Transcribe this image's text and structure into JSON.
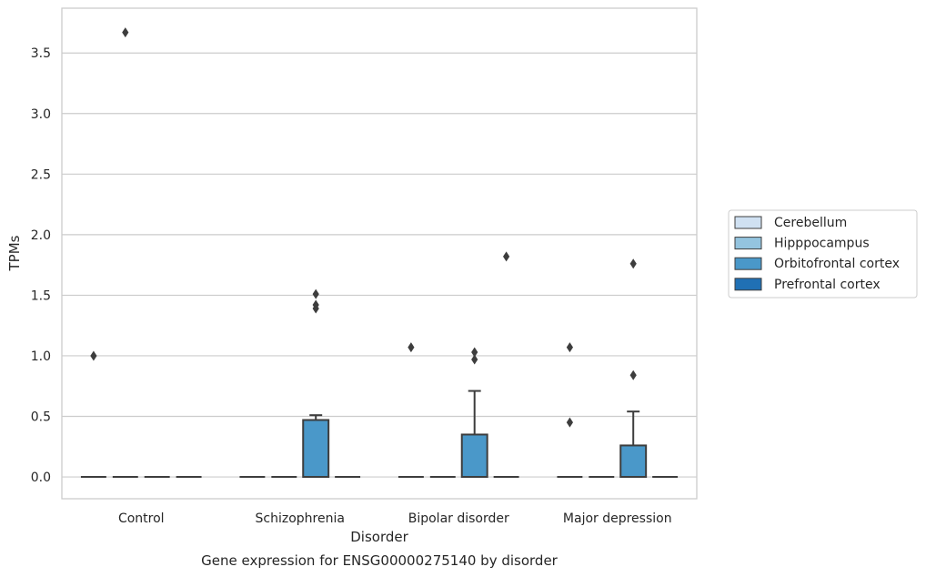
{
  "chart_data": {
    "type": "box",
    "caption": "Gene expression for ENSG00000275140 by disorder",
    "xlabel": "Disorder",
    "ylabel": "TPMs",
    "ylim": [
      -0.18,
      3.87
    ],
    "y_ticks": [
      "0.0",
      "0.5",
      "1.0",
      "1.5",
      "2.0",
      "2.5",
      "3.0",
      "3.5"
    ],
    "y_tick_values": [
      0,
      0.5,
      1.0,
      1.5,
      2.0,
      2.5,
      3.0,
      3.5
    ],
    "categories": [
      "Control",
      "Schizophrenia",
      "Bipolar disorder",
      "Major depression"
    ],
    "grid": "horizontal",
    "legend_position": "right",
    "series": [
      {
        "name": "Cerebellum",
        "color": "#d0e1f2",
        "boxes": [
          {
            "q1": 0,
            "median": 0,
            "q3": 0,
            "whisker_low": 0,
            "whisker_high": 0,
            "outliers": [
              1.0
            ]
          },
          {
            "q1": 0,
            "median": 0,
            "q3": 0,
            "whisker_low": 0,
            "whisker_high": 0,
            "outliers": []
          },
          {
            "q1": 0,
            "median": 0,
            "q3": 0,
            "whisker_low": 0,
            "whisker_high": 0,
            "outliers": [
              1.07
            ]
          },
          {
            "q1": 0,
            "median": 0,
            "q3": 0,
            "whisker_low": 0,
            "whisker_high": 0,
            "outliers": [
              1.07,
              0.45
            ]
          }
        ]
      },
      {
        "name": "Hipppocampus",
        "color": "#94c4df",
        "boxes": [
          {
            "q1": 0,
            "median": 0,
            "q3": 0,
            "whisker_low": 0,
            "whisker_high": 0,
            "outliers": [
              3.67
            ]
          },
          {
            "q1": 0,
            "median": 0,
            "q3": 0,
            "whisker_low": 0,
            "whisker_high": 0,
            "outliers": []
          },
          {
            "q1": 0,
            "median": 0,
            "q3": 0,
            "whisker_low": 0,
            "whisker_high": 0,
            "outliers": []
          },
          {
            "q1": 0,
            "median": 0,
            "q3": 0,
            "whisker_low": 0,
            "whisker_high": 0,
            "outliers": []
          }
        ]
      },
      {
        "name": "Orbitofrontal cortex",
        "color": "#4a98c9",
        "boxes": [
          {
            "q1": 0,
            "median": 0,
            "q3": 0,
            "whisker_low": 0,
            "whisker_high": 0,
            "outliers": []
          },
          {
            "q1": 0,
            "median": 0,
            "q3": 0.47,
            "whisker_low": 0,
            "whisker_high": 0.51,
            "outliers": [
              1.51,
              1.42,
              1.39
            ]
          },
          {
            "q1": 0,
            "median": 0,
            "q3": 0.35,
            "whisker_low": 0,
            "whisker_high": 0.71,
            "outliers": [
              1.03,
              0.97
            ]
          },
          {
            "q1": 0,
            "median": 0,
            "q3": 0.26,
            "whisker_low": 0,
            "whisker_high": 0.54,
            "outliers": [
              1.76,
              0.84
            ]
          }
        ]
      },
      {
        "name": "Prefrontal cortex",
        "color": "#2070b4",
        "boxes": [
          {
            "q1": 0,
            "median": 0,
            "q3": 0,
            "whisker_low": 0,
            "whisker_high": 0,
            "outliers": []
          },
          {
            "q1": 0,
            "median": 0,
            "q3": 0,
            "whisker_low": 0,
            "whisker_high": 0,
            "outliers": []
          },
          {
            "q1": 0,
            "median": 0,
            "q3": 0,
            "whisker_low": 0,
            "whisker_high": 0,
            "outliers": [
              1.82
            ]
          },
          {
            "q1": 0,
            "median": 0,
            "q3": 0,
            "whisker_low": 0,
            "whisker_high": 0,
            "outliers": []
          }
        ]
      }
    ]
  }
}
